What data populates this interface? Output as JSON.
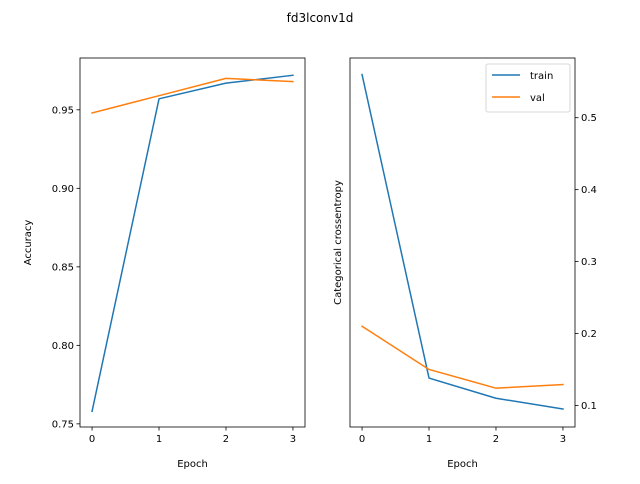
{
  "figure_title": "fd3lconv1d",
  "colors": {
    "train": "#1f77b4",
    "val": "#ff7f0e"
  },
  "chart_data": [
    {
      "type": "line",
      "xlabel": "Epoch",
      "ylabel": "Accuracy",
      "ylim": [
        0.748,
        0.983
      ],
      "xlim": [
        -0.18,
        3.18
      ],
      "x": [
        0,
        1,
        2,
        3
      ],
      "xticks": [
        0,
        1,
        2,
        3
      ],
      "yticks": [
        0.75,
        0.8,
        0.85,
        0.9,
        0.95
      ],
      "ytick_labels": [
        "0.75",
        "0.80",
        "0.85",
        "0.90",
        "0.95"
      ],
      "ytick_side": "left",
      "grid": false,
      "series": [
        {
          "name": "train",
          "values": [
            0.758,
            0.957,
            0.967,
            0.972
          ]
        },
        {
          "name": "val",
          "values": [
            0.948,
            0.959,
            0.97,
            0.968
          ]
        }
      ]
    },
    {
      "type": "line",
      "xlabel": "Epoch",
      "ylabel": "Categorical crossentropy",
      "ylim": [
        0.07,
        0.583
      ],
      "xlim": [
        -0.18,
        3.18
      ],
      "x": [
        0,
        1,
        2,
        3
      ],
      "xticks": [
        0,
        1,
        2,
        3
      ],
      "yticks": [
        0.1,
        0.2,
        0.3,
        0.4,
        0.5
      ],
      "ytick_labels": [
        "0.1",
        "0.2",
        "0.3",
        "0.4",
        "0.5"
      ],
      "ytick_side": "right",
      "grid": false,
      "legend": {
        "position": "upper right",
        "entries": [
          "train",
          "val"
        ]
      },
      "series": [
        {
          "name": "train",
          "values": [
            0.56,
            0.138,
            0.11,
            0.095
          ]
        },
        {
          "name": "val",
          "values": [
            0.21,
            0.15,
            0.124,
            0.129
          ]
        }
      ]
    }
  ]
}
